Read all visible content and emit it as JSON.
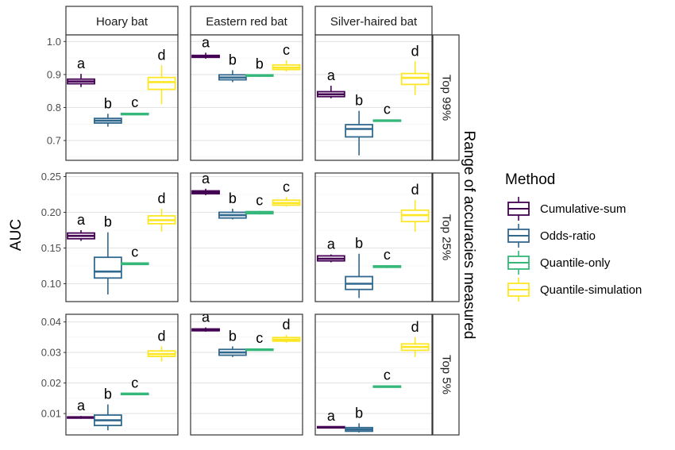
{
  "chart_data": {
    "type": "boxplot",
    "title": "",
    "ylabel": "AUC",
    "row_strip_title": "Range of accuracies measured",
    "grid": true,
    "legend": {
      "title": "Method",
      "placement": "right",
      "entries": [
        {
          "name": "Cumulative-sum",
          "color": "#440154"
        },
        {
          "name": "Odds-ratio",
          "color": "#31688E"
        },
        {
          "name": "Quantile-only",
          "color": "#35B779"
        },
        {
          "name": "Quantile-simulation",
          "color": "#FDE725"
        }
      ]
    },
    "columns": [
      "Hoary bat",
      "Eastern red bat",
      "Silver-haired bat"
    ],
    "rows": [
      {
        "label": "Top 99%",
        "ylim": [
          0.64,
          1.02
        ],
        "ticks": [
          0.7,
          0.8,
          0.9,
          1.0
        ],
        "tick_labels": [
          "0.7",
          "0.8",
          "0.9",
          "1.0"
        ],
        "panels": [
          {
            "boxes": [
              {
                "min": 0.862,
                "q1": 0.872,
                "median": 0.879,
                "q3": 0.886,
                "max": 0.902,
                "letter": "a"
              },
              {
                "min": 0.742,
                "q1": 0.753,
                "median": 0.76,
                "q3": 0.767,
                "max": 0.781,
                "letter": "b"
              },
              {
                "min": 0.777,
                "q1": 0.779,
                "median": 0.78,
                "q3": 0.782,
                "max": 0.784,
                "letter": "c"
              },
              {
                "min": 0.81,
                "q1": 0.855,
                "median": 0.877,
                "q3": 0.891,
                "max": 0.928,
                "letter": "d"
              }
            ]
          },
          {
            "boxes": [
              {
                "min": 0.948,
                "q1": 0.952,
                "median": 0.955,
                "q3": 0.958,
                "max": 0.966,
                "letter": "a"
              },
              {
                "min": 0.877,
                "q1": 0.884,
                "median": 0.891,
                "q3": 0.899,
                "max": 0.913,
                "letter": "b"
              },
              {
                "min": 0.893,
                "q1": 0.895,
                "median": 0.897,
                "q3": 0.899,
                "max": 0.901,
                "letter": "b"
              },
              {
                "min": 0.909,
                "q1": 0.915,
                "median": 0.921,
                "q3": 0.929,
                "max": 0.943,
                "letter": "c"
              }
            ]
          },
          {
            "boxes": [
              {
                "min": 0.828,
                "q1": 0.833,
                "median": 0.84,
                "q3": 0.848,
                "max": 0.866,
                "letter": "a"
              },
              {
                "min": 0.655,
                "q1": 0.711,
                "median": 0.735,
                "q3": 0.748,
                "max": 0.79,
                "letter": "b"
              },
              {
                "min": 0.757,
                "q1": 0.759,
                "median": 0.76,
                "q3": 0.762,
                "max": 0.764,
                "letter": "c"
              },
              {
                "min": 0.838,
                "q1": 0.87,
                "median": 0.89,
                "q3": 0.903,
                "max": 0.94,
                "letter": "d"
              }
            ]
          }
        ]
      },
      {
        "label": "Top 25%",
        "ylim": [
          0.075,
          0.255
        ],
        "ticks": [
          0.1,
          0.15,
          0.2,
          0.25
        ],
        "tick_labels": [
          "0.10",
          "0.15",
          "0.20",
          "0.25"
        ],
        "panels": [
          {
            "boxes": [
              {
                "min": 0.16,
                "q1": 0.163,
                "median": 0.167,
                "q3": 0.171,
                "max": 0.175,
                "letter": "a"
              },
              {
                "min": 0.085,
                "q1": 0.108,
                "median": 0.117,
                "q3": 0.137,
                "max": 0.172,
                "letter": "b"
              },
              {
                "min": 0.126,
                "q1": 0.127,
                "median": 0.128,
                "q3": 0.129,
                "max": 0.13,
                "letter": "c"
              },
              {
                "min": 0.173,
                "q1": 0.184,
                "median": 0.189,
                "q3": 0.195,
                "max": 0.205,
                "letter": "d"
              }
            ]
          },
          {
            "boxes": [
              {
                "min": 0.224,
                "q1": 0.226,
                "median": 0.228,
                "q3": 0.23,
                "max": 0.233,
                "letter": "a"
              },
              {
                "min": 0.19,
                "q1": 0.192,
                "median": 0.196,
                "q3": 0.2,
                "max": 0.205,
                "letter": "b"
              },
              {
                "min": 0.197,
                "q1": 0.198,
                "median": 0.199,
                "q3": 0.201,
                "max": 0.202,
                "letter": "c"
              },
              {
                "min": 0.208,
                "q1": 0.21,
                "median": 0.213,
                "q3": 0.217,
                "max": 0.221,
                "letter": "c"
              }
            ]
          },
          {
            "boxes": [
              {
                "min": 0.13,
                "q1": 0.132,
                "median": 0.135,
                "q3": 0.139,
                "max": 0.141,
                "letter": "a"
              },
              {
                "min": 0.08,
                "q1": 0.092,
                "median": 0.1,
                "q3": 0.11,
                "max": 0.142,
                "letter": "b"
              },
              {
                "min": 0.122,
                "q1": 0.123,
                "median": 0.124,
                "q3": 0.125,
                "max": 0.126,
                "letter": "c"
              },
              {
                "min": 0.173,
                "q1": 0.187,
                "median": 0.196,
                "q3": 0.203,
                "max": 0.217,
                "letter": "d"
              }
            ]
          }
        ]
      },
      {
        "label": "Top 5%",
        "ylim": [
          0.003,
          0.0425
        ],
        "ticks": [
          0.01,
          0.02,
          0.03,
          0.04
        ],
        "tick_labels": [
          "0.01",
          "0.02",
          "0.03",
          "0.04"
        ],
        "panels": [
          {
            "boxes": [
              {
                "min": 0.0083,
                "q1": 0.0085,
                "median": 0.0087,
                "q3": 0.0089,
                "max": 0.0092,
                "letter": "a"
              },
              {
                "min": 0.0045,
                "q1": 0.0061,
                "median": 0.0078,
                "q3": 0.0095,
                "max": 0.013,
                "letter": "b"
              },
              {
                "min": 0.0163,
                "q1": 0.0164,
                "median": 0.0165,
                "q3": 0.0166,
                "max": 0.0167,
                "letter": "c"
              },
              {
                "min": 0.027,
                "q1": 0.0287,
                "median": 0.0295,
                "q3": 0.0305,
                "max": 0.032,
                "letter": "d"
              }
            ]
          },
          {
            "boxes": [
              {
                "min": 0.0368,
                "q1": 0.0371,
                "median": 0.0374,
                "q3": 0.0377,
                "max": 0.0382,
                "letter": "a"
              },
              {
                "min": 0.0285,
                "q1": 0.0291,
                "median": 0.03,
                "q3": 0.031,
                "max": 0.032,
                "letter": "b"
              },
              {
                "min": 0.0305,
                "q1": 0.0307,
                "median": 0.0309,
                "q3": 0.0311,
                "max": 0.0313,
                "letter": "c"
              },
              {
                "min": 0.0332,
                "q1": 0.0337,
                "median": 0.0342,
                "q3": 0.0349,
                "max": 0.0357,
                "letter": "d"
              }
            ]
          },
          {
            "boxes": [
              {
                "min": 0.0053,
                "q1": 0.0054,
                "median": 0.0055,
                "q3": 0.0057,
                "max": 0.0058,
                "letter": "a"
              },
              {
                "min": 0.0038,
                "q1": 0.0042,
                "median": 0.0048,
                "q3": 0.0054,
                "max": 0.0068,
                "letter": "b"
              },
              {
                "min": 0.0186,
                "q1": 0.0187,
                "median": 0.0188,
                "q3": 0.019,
                "max": 0.0192,
                "letter": "c"
              },
              {
                "min": 0.0285,
                "q1": 0.0307,
                "median": 0.0318,
                "q3": 0.0328,
                "max": 0.035,
                "letter": "d"
              }
            ]
          }
        ]
      }
    ]
  }
}
